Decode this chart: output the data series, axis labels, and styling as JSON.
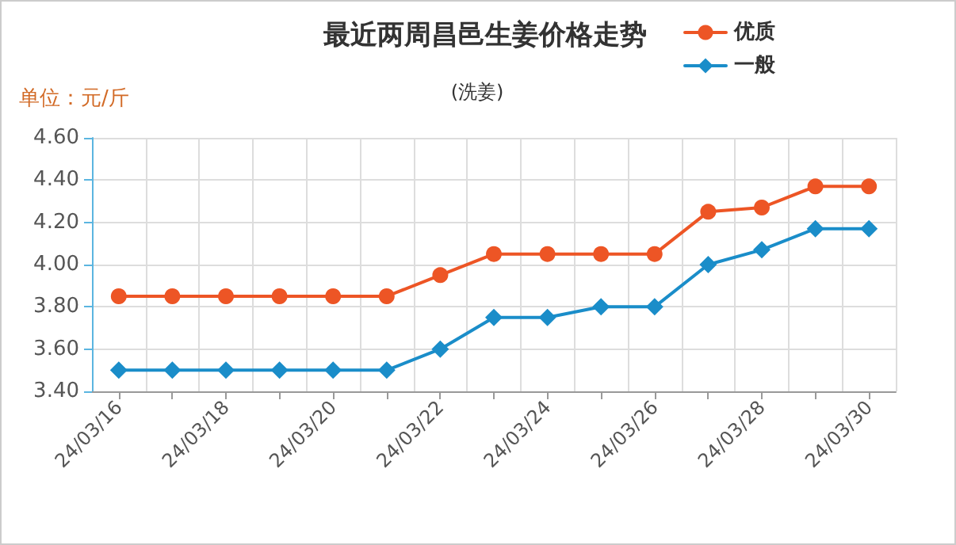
{
  "chart_data": {
    "type": "line",
    "title": "最近两周昌邑生姜价格走势",
    "subtitle": "(洗姜)",
    "ylabel": "单位：元/斤",
    "categories": [
      "24/03/16",
      null,
      "24/03/18",
      null,
      "24/03/20",
      null,
      "24/03/22",
      null,
      "24/03/24",
      null,
      "24/03/26",
      null,
      "24/03/28",
      null,
      "24/03/30"
    ],
    "series": [
      {
        "name": "优质",
        "color": "#ed5525",
        "marker": "circle",
        "values": [
          3.85,
          3.85,
          3.85,
          3.85,
          3.85,
          3.85,
          3.95,
          4.05,
          4.05,
          4.05,
          4.05,
          4.25,
          4.27,
          4.37,
          4.37
        ]
      },
      {
        "name": "一般",
        "color": "#1a8dc9",
        "marker": "diamond",
        "values": [
          3.5,
          3.5,
          3.5,
          3.5,
          3.5,
          3.5,
          3.6,
          3.75,
          3.75,
          3.8,
          3.8,
          4.0,
          4.07,
          4.17,
          4.17
        ]
      }
    ],
    "ylim": [
      3.4,
      4.6
    ],
    "yticks": [
      {
        "value": 3.4,
        "label": "3.40"
      },
      {
        "value": 3.6,
        "label": "3.60"
      },
      {
        "value": 3.8,
        "label": "3.80"
      },
      {
        "value": 4.0,
        "label": "4.00"
      },
      {
        "value": 4.2,
        "label": "4.20"
      },
      {
        "value": 4.4,
        "label": "4.40"
      },
      {
        "value": 4.6,
        "label": "4.60"
      }
    ],
    "grid": true,
    "legend": "top right",
    "line_style": "solid"
  }
}
